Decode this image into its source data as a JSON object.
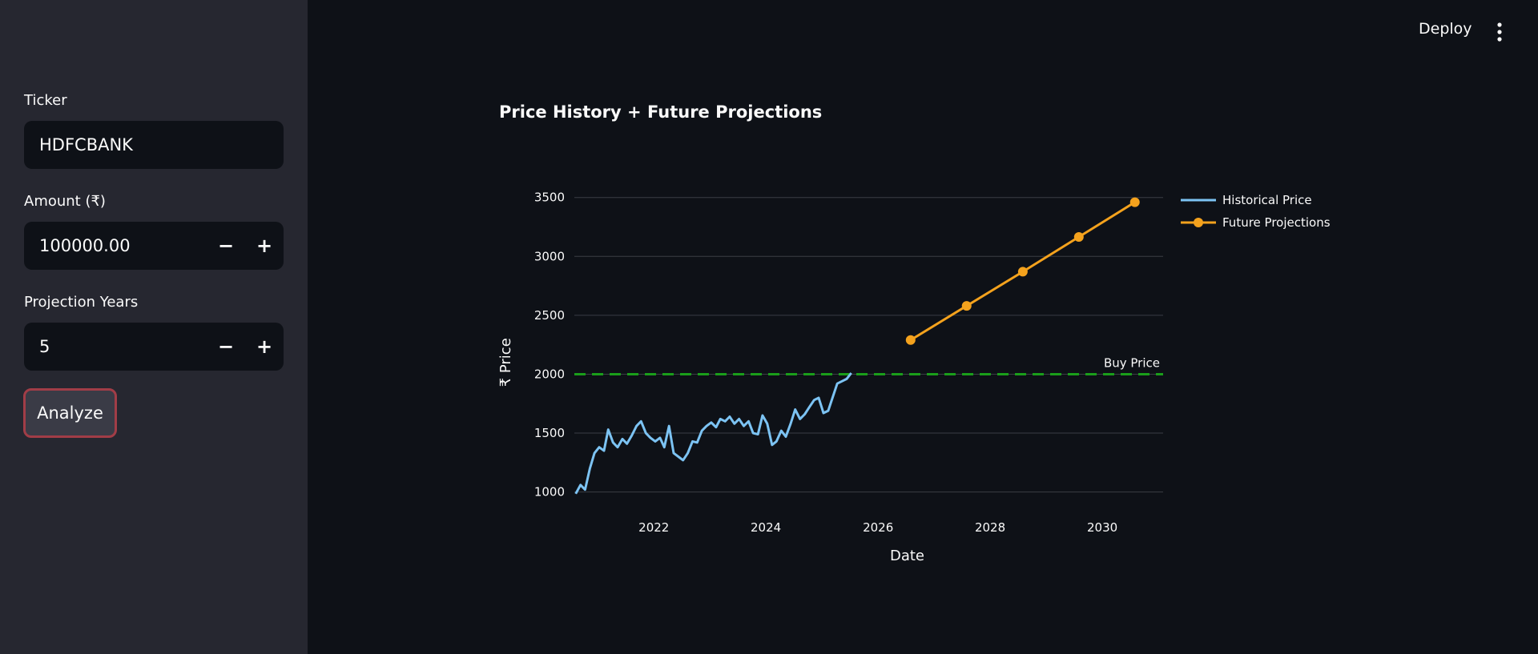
{
  "toolbar": {
    "deploy_label": "Deploy"
  },
  "sidebar": {
    "ticker": {
      "label": "Ticker",
      "value": "HDFCBANK"
    },
    "amount": {
      "label": "Amount (₹)",
      "value": "100000.00",
      "minus": "−",
      "plus": "+"
    },
    "years": {
      "label": "Projection Years",
      "value": "5",
      "minus": "−",
      "plus": "+"
    },
    "analyze_label": "Analyze"
  },
  "colors": {
    "historical": "#7cc3f3",
    "future": "#f4a21d",
    "buy_line": "#1a9e1a",
    "grid": "#3a3d45"
  },
  "chart_data": {
    "type": "line",
    "title": "Price History + Future Projections",
    "xlabel": "Date",
    "ylabel": "₹ Price",
    "ylim": [
      950,
      3600
    ],
    "xlim": [
      "2020-08-01",
      "2031-02-01"
    ],
    "yticks": [
      1000,
      1500,
      2000,
      2500,
      3000,
      3500
    ],
    "xticks": [
      {
        "label": "2022",
        "date": "2022-01-01"
      },
      {
        "label": "2024",
        "date": "2024-01-01"
      },
      {
        "label": "2026",
        "date": "2026-01-01"
      },
      {
        "label": "2028",
        "date": "2028-01-01"
      },
      {
        "label": "2030",
        "date": "2030-01-01"
      }
    ],
    "grid": true,
    "legend_position": "top-right",
    "buy_price": {
      "label": "Buy Price",
      "value": 2000
    },
    "series": [
      {
        "name": "Historical Price",
        "style": "line",
        "points": [
          [
            "2020-08-10",
            985
          ],
          [
            "2020-09-10",
            1060
          ],
          [
            "2020-10-10",
            1020
          ],
          [
            "2020-11-10",
            1200
          ],
          [
            "2020-12-10",
            1330
          ],
          [
            "2021-01-10",
            1380
          ],
          [
            "2021-02-10",
            1350
          ],
          [
            "2021-03-10",
            1530
          ],
          [
            "2021-04-10",
            1420
          ],
          [
            "2021-05-10",
            1380
          ],
          [
            "2021-06-10",
            1450
          ],
          [
            "2021-07-10",
            1410
          ],
          [
            "2021-08-10",
            1480
          ],
          [
            "2021-09-10",
            1560
          ],
          [
            "2021-10-10",
            1600
          ],
          [
            "2021-11-10",
            1500
          ],
          [
            "2021-12-10",
            1460
          ],
          [
            "2022-01-10",
            1430
          ],
          [
            "2022-02-10",
            1460
          ],
          [
            "2022-03-10",
            1380
          ],
          [
            "2022-04-10",
            1560
          ],
          [
            "2022-05-10",
            1330
          ],
          [
            "2022-06-10",
            1300
          ],
          [
            "2022-07-10",
            1270
          ],
          [
            "2022-08-10",
            1330
          ],
          [
            "2022-09-10",
            1430
          ],
          [
            "2022-10-10",
            1420
          ],
          [
            "2022-11-10",
            1520
          ],
          [
            "2022-12-10",
            1560
          ],
          [
            "2023-01-10",
            1590
          ],
          [
            "2023-02-10",
            1550
          ],
          [
            "2023-03-10",
            1620
          ],
          [
            "2023-04-10",
            1600
          ],
          [
            "2023-05-10",
            1640
          ],
          [
            "2023-06-10",
            1580
          ],
          [
            "2023-07-10",
            1620
          ],
          [
            "2023-08-10",
            1560
          ],
          [
            "2023-09-10",
            1600
          ],
          [
            "2023-10-10",
            1500
          ],
          [
            "2023-11-10",
            1490
          ],
          [
            "2023-12-10",
            1650
          ],
          [
            "2024-01-10",
            1580
          ],
          [
            "2024-02-10",
            1400
          ],
          [
            "2024-03-10",
            1430
          ],
          [
            "2024-04-10",
            1520
          ],
          [
            "2024-05-10",
            1470
          ],
          [
            "2024-06-10",
            1580
          ],
          [
            "2024-07-10",
            1700
          ],
          [
            "2024-08-10",
            1620
          ],
          [
            "2024-09-10",
            1660
          ],
          [
            "2024-10-10",
            1720
          ],
          [
            "2024-11-10",
            1780
          ],
          [
            "2024-12-10",
            1800
          ],
          [
            "2025-01-10",
            1670
          ],
          [
            "2025-02-10",
            1690
          ],
          [
            "2025-03-10",
            1800
          ],
          [
            "2025-04-10",
            1920
          ],
          [
            "2025-05-10",
            1940
          ],
          [
            "2025-06-10",
            1960
          ],
          [
            "2025-07-10",
            2010
          ]
        ]
      },
      {
        "name": "Future Projections",
        "style": "line+markers",
        "points": [
          [
            "2026-08-01",
            2290
          ],
          [
            "2027-08-01",
            2580
          ],
          [
            "2028-08-01",
            2870
          ],
          [
            "2029-08-01",
            3165
          ],
          [
            "2030-08-01",
            3460
          ]
        ]
      }
    ]
  }
}
